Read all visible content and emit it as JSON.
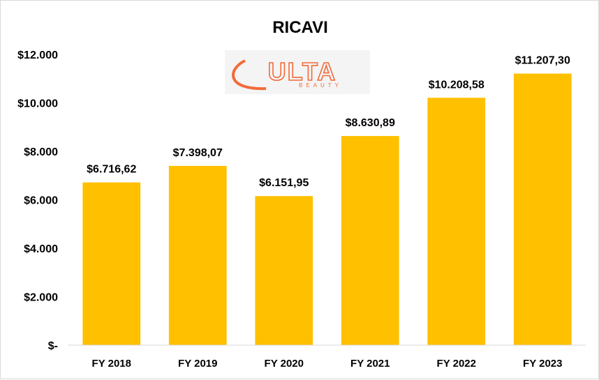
{
  "chart_data": {
    "type": "bar",
    "title": "RICAVI",
    "categories": [
      "FY 2018",
      "FY 2019",
      "FY 2020",
      "FY 2021",
      "FY 2022",
      "FY 2023"
    ],
    "values": [
      6716.62,
      7398.07,
      6151.95,
      8630.89,
      10208.58,
      11207.3
    ],
    "data_labels": [
      "$6.716,62",
      "$7.398,07",
      "$6.151,95",
      "$8.630,89",
      "$10.208,58",
      "$11.207,30"
    ],
    "y_ticks": [
      0,
      2000,
      4000,
      6000,
      8000,
      10000,
      12000
    ],
    "y_tick_labels": [
      "$-",
      "$2.000",
      "$4.000",
      "$6.000",
      "$8.000",
      "$10.000",
      "$12.000"
    ],
    "ylim": [
      0,
      12000
    ],
    "grid": false,
    "legend": "none",
    "bar_color": "#FFC000",
    "xlabel": "",
    "ylabel": ""
  },
  "logo": {
    "text": "ULTA",
    "subtext": "BEAUTY",
    "color": "#F26B3A"
  }
}
